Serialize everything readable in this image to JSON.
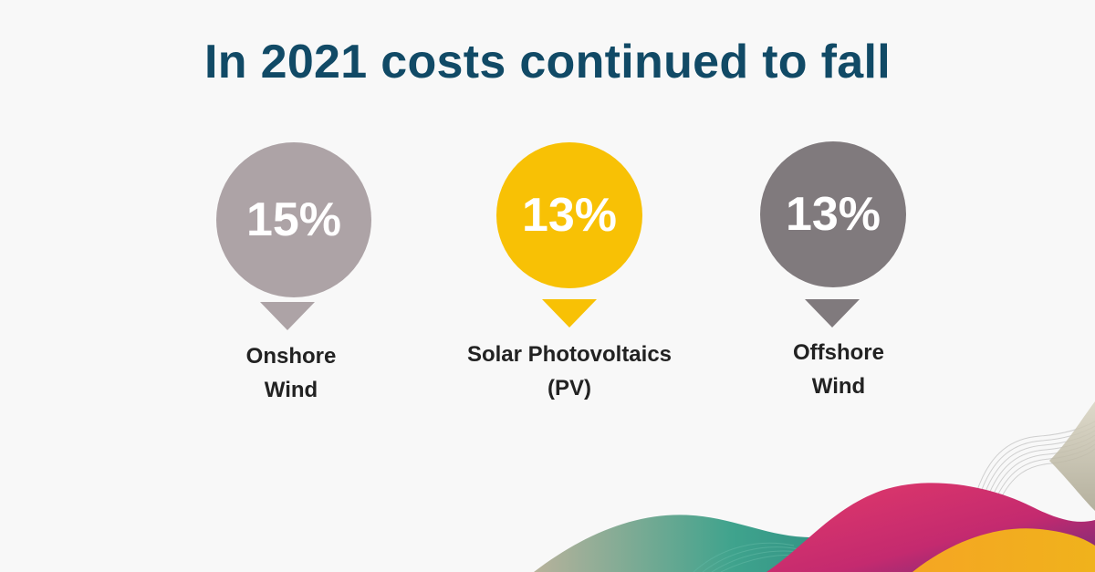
{
  "title": "In 2021 costs continued to fall",
  "stats": [
    {
      "value": "15%",
      "label_line1": "Onshore",
      "label_line2": "Wind",
      "color": "#ada3a6"
    },
    {
      "value": "13%",
      "label_line1": "Solar Photovoltaics",
      "label_line2": "(PV)",
      "color": "#f8c105"
    },
    {
      "value": "13%",
      "label_line1": "Offshore",
      "label_line2": "Wind",
      "color": "#807a7d"
    }
  ],
  "colors": {
    "background": "#f8f8f8",
    "title": "#114a66",
    "label": "#222222",
    "wave_magenta": "#d8336b",
    "wave_orange": "#f3a21e",
    "wave_green": "#3a9c8c",
    "wave_beige": "#bfb8a3"
  }
}
